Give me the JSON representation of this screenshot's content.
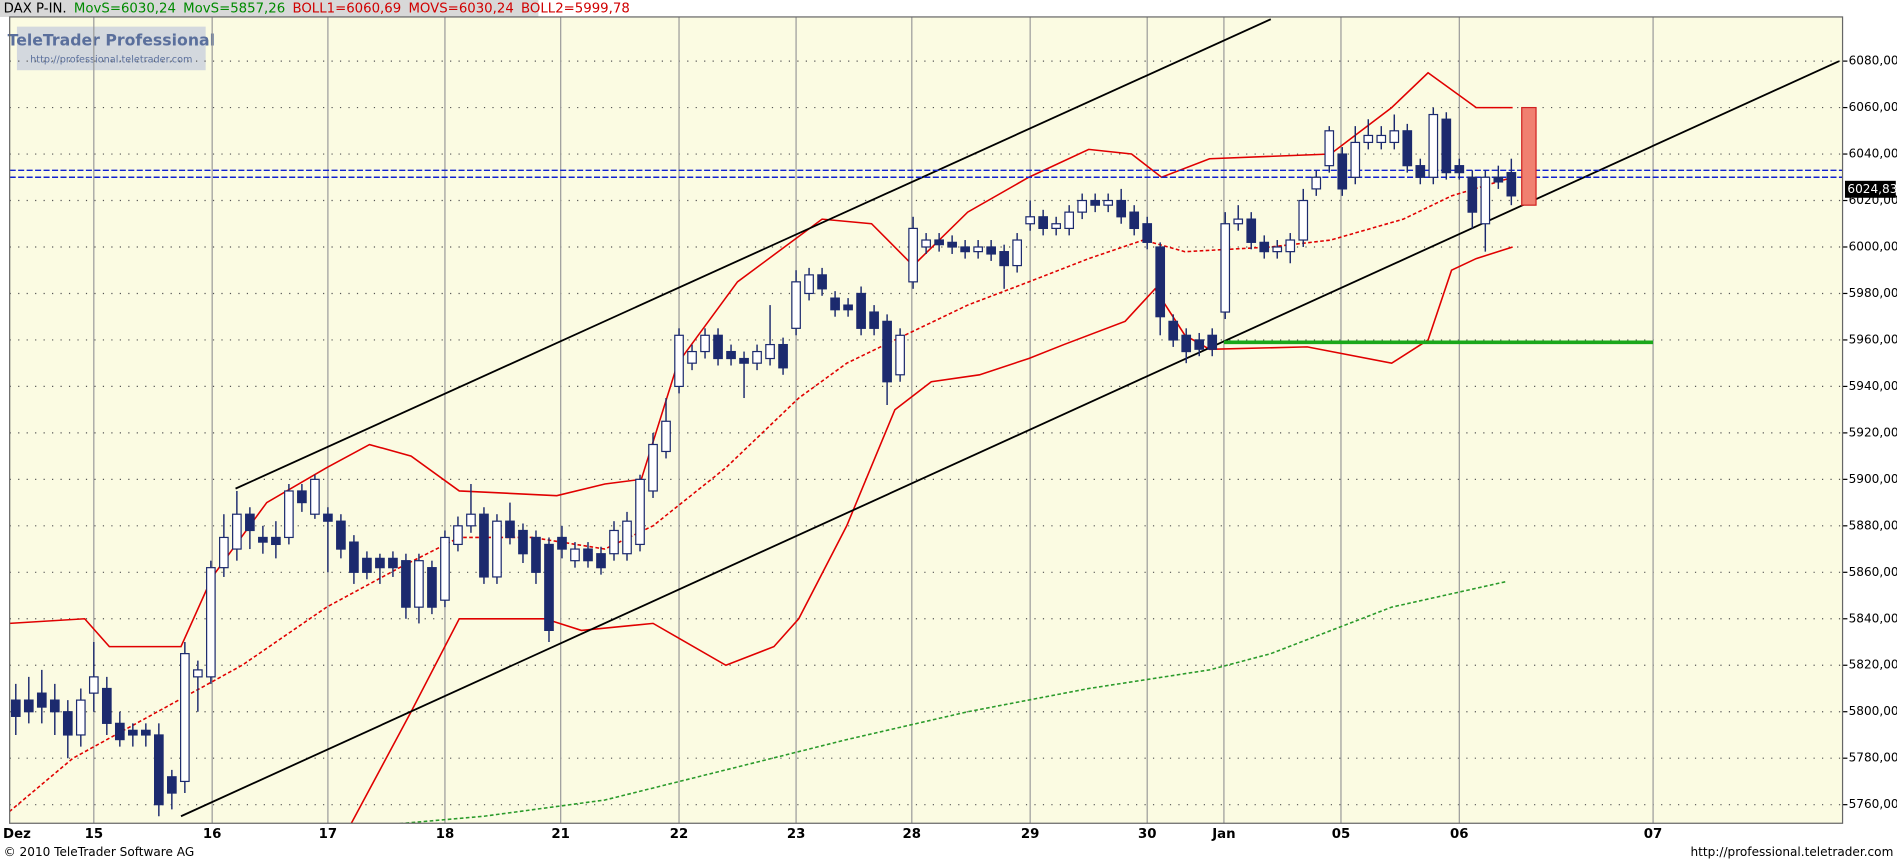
{
  "chart_data": {
    "type": "candlestick",
    "title_parts": [
      {
        "text": "DAX P-IN.",
        "color": "#000000"
      },
      {
        "text": "MovS=6030,24",
        "color": "#008a00"
      },
      {
        "text": "MovS=5857,26",
        "color": "#008a00"
      },
      {
        "text": "BOLL1=6060,69",
        "color": "#d00000"
      },
      {
        "text": "MOVS=6030,24",
        "color": "#d00000"
      },
      {
        "text": "BOLL2=5999,78",
        "color": "#d00000"
      }
    ],
    "logo": {
      "title": "TeleTrader Professional",
      "url": "http://professional.teletrader.com"
    },
    "footer_left": "© 2010 TeleTrader Software AG",
    "footer_right": "http://professional.teletrader.com",
    "up_color": "#ffffff",
    "down_color": "#1c2a6e",
    "background": "#fbfbe2",
    "open": [
      5805,
      5805,
      5808,
      5805,
      5800,
      5790,
      5808,
      5810,
      5795,
      5792,
      5792,
      5790,
      5772,
      5770,
      5815,
      5815,
      5862,
      5870,
      5885,
      5875,
      5875,
      5875,
      5895,
      5885,
      5885,
      5882,
      5873,
      5866,
      5866,
      5866,
      5865,
      5845,
      5862,
      5848,
      5872,
      5880,
      5885,
      5858,
      5882,
      5878,
      5875,
      5872,
      5875,
      5865,
      5870,
      5868,
      5868,
      5868,
      5872,
      5895,
      5912,
      5940,
      5950,
      5955,
      5962,
      5955,
      5952,
      5950,
      5952,
      5958,
      5965,
      5980,
      5988,
      5978,
      5975,
      5980,
      5972,
      5968,
      5945,
      5985,
      6000,
      6003,
      6002,
      6000,
      5998,
      6000,
      5998,
      5992,
      6010,
      6013,
      6008,
      6008,
      6015,
      6020,
      6018,
      6020,
      6015,
      6010,
      6000,
      5968,
      5962,
      5960,
      5962,
      5972,
      6010,
      6012,
      6002,
      5998,
      5998,
      6003,
      6025,
      6035,
      6040,
      6030,
      6045,
      6045,
      6045,
      6050,
      6035,
      6030,
      6055,
      6035,
      6030,
      6010,
      6030,
      6032
    ],
    "high": [
      5812,
      5815,
      5818,
      5812,
      5805,
      5810,
      5830,
      5815,
      5800,
      5795,
      5795,
      5795,
      5775,
      5830,
      5822,
      5865,
      5885,
      5895,
      5888,
      5880,
      5882,
      5898,
      5898,
      5902,
      5888,
      5885,
      5876,
      5869,
      5868,
      5869,
      5868,
      5868,
      5865,
      5878,
      5884,
      5898,
      5888,
      5885,
      5890,
      5881,
      5878,
      5875,
      5880,
      5873,
      5873,
      5871,
      5882,
      5886,
      5902,
      5920,
      5935,
      5965,
      5958,
      5965,
      5965,
      5958,
      5955,
      5958,
      5975,
      5961,
      5990,
      5991,
      5991,
      5981,
      5978,
      5983,
      5975,
      5971,
      5965,
      6013,
      6006,
      6006,
      6005,
      6003,
      6003,
      6003,
      6001,
      6006,
      6020,
      6016,
      6013,
      6018,
      6023,
      6023,
      6023,
      6025,
      6018,
      6013,
      6002,
      5971,
      5965,
      5963,
      5965,
      6015,
      6018,
      6015,
      6005,
      6003,
      6006,
      6025,
      6033,
      6052,
      6043,
      6052,
      6055,
      6052,
      6057,
      6053,
      6038,
      6060,
      6058,
      6038,
      6033,
      6033,
      6035,
      6038
    ],
    "low": [
      5790,
      5795,
      5795,
      5790,
      5780,
      5785,
      5800,
      5790,
      5785,
      5785,
      5785,
      5755,
      5758,
      5765,
      5800,
      5812,
      5858,
      5865,
      5870,
      5868,
      5866,
      5872,
      5886,
      5883,
      5860,
      5866,
      5855,
      5857,
      5855,
      5858,
      5840,
      5838,
      5842,
      5845,
      5869,
      5877,
      5855,
      5855,
      5872,
      5864,
      5855,
      5830,
      5866,
      5862,
      5862,
      5859,
      5865,
      5865,
      5869,
      5892,
      5909,
      5937,
      5947,
      5952,
      5949,
      5949,
      5935,
      5947,
      5949,
      5945,
      5962,
      5977,
      5979,
      5970,
      5970,
      5962,
      5962,
      5932,
      5942,
      5982,
      5997,
      5998,
      5997,
      5995,
      5995,
      5994,
      5982,
      5989,
      6007,
      6005,
      6005,
      6005,
      6012,
      6015,
      6015,
      6010,
      6005,
      5999,
      5962,
      5957,
      5950,
      5953,
      5953,
      5969,
      6007,
      5999,
      5995,
      5995,
      5993,
      6000,
      6022,
      6032,
      6022,
      6027,
      6042,
      6042,
      6042,
      6032,
      6027,
      6027,
      6029,
      6029,
      6008,
      5998,
      6025,
      6018
    ],
    "close": [
      5798,
      5800,
      5802,
      5800,
      5790,
      5805,
      5815,
      5795,
      5788,
      5790,
      5790,
      5760,
      5765,
      5825,
      5818,
      5862,
      5875,
      5885,
      5878,
      5873,
      5872,
      5895,
      5890,
      5900,
      5882,
      5870,
      5860,
      5860,
      5862,
      5862,
      5845,
      5865,
      5845,
      5875,
      5880,
      5885,
      5858,
      5882,
      5875,
      5868,
      5860,
      5835,
      5870,
      5870,
      5865,
      5862,
      5878,
      5882,
      5900,
      5915,
      5925,
      5962,
      5955,
      5962,
      5952,
      5952,
      5950,
      5955,
      5958,
      5948,
      5985,
      5988,
      5982,
      5973,
      5973,
      5965,
      5965,
      5942,
      5962,
      6008,
      6003,
      6001,
      6000,
      5998,
      6000,
      5997,
      5992,
      6003,
      6013,
      6008,
      6010,
      6015,
      6020,
      6018,
      6020,
      6013,
      6008,
      6002,
      5970,
      5960,
      5955,
      5956,
      5956,
      6010,
      6012,
      6002,
      5998,
      6000,
      6003,
      6020,
      6030,
      6050,
      6025,
      6045,
      6048,
      6048,
      6050,
      6035,
      6030,
      6057,
      6032,
      6032,
      6015,
      6030,
      6028,
      6022
    ],
    "xlim": [
      -0.47,
      140.47
    ],
    "ylim": [
      5752,
      6099
    ],
    "xticks": [
      {
        "value": 0,
        "label": "Dez"
      },
      {
        "value": 6.0,
        "label": "15"
      },
      {
        "value": 15.1,
        "label": "16"
      },
      {
        "value": 24.0,
        "label": "17"
      },
      {
        "value": 33.0,
        "label": "18"
      },
      {
        "value": 41.9,
        "label": "21"
      },
      {
        "value": 51.0,
        "label": "22"
      },
      {
        "value": 60.0,
        "label": "23"
      },
      {
        "value": 68.9,
        "label": "28"
      },
      {
        "value": 78.0,
        "label": "29"
      },
      {
        "value": 87.0,
        "label": "30"
      },
      {
        "value": 92.9,
        "label": "Jan"
      },
      {
        "value": 101.9,
        "label": "05"
      },
      {
        "value": 111.0,
        "label": "06"
      },
      {
        "value": 125.9,
        "label": "07"
      }
    ],
    "yticks": [
      {
        "value": 5760,
        "label": "5760,00"
      },
      {
        "value": 5780,
        "label": "5780,00"
      },
      {
        "value": 5800,
        "label": "5800,00"
      },
      {
        "value": 5820,
        "label": "5820,00"
      },
      {
        "value": 5840,
        "label": "5840,00"
      },
      {
        "value": 5860,
        "label": "5860,00"
      },
      {
        "value": 5880,
        "label": "5880,00"
      },
      {
        "value": 5900,
        "label": "5900,00"
      },
      {
        "value": 5920,
        "label": "5920,00"
      },
      {
        "value": 5940,
        "label": "5940,00"
      },
      {
        "value": 5960,
        "label": "5960,00"
      },
      {
        "value": 5980,
        "label": "5980,00"
      },
      {
        "value": 6000,
        "label": "6000,00"
      },
      {
        "value": 6020,
        "label": "6020,00"
      },
      {
        "value": 6040,
        "label": "6040,00"
      },
      {
        "value": 6060,
        "label": "6060,00"
      },
      {
        "value": 6080,
        "label": "6080,00"
      }
    ],
    "grid": true,
    "overlays": [
      {
        "color": "#e00000",
        "dash": false,
        "x": [
          -0.5,
          5.3,
          7.2,
          12.7,
          15.1,
          19.3,
          23.9,
          27.2,
          30.4,
          34.1,
          41.6,
          45.3,
          48.1,
          50.9,
          55.5,
          62,
          65.8,
          69,
          73.2,
          77.9,
          82.5,
          85.8,
          88.1,
          91.8,
          101.1,
          105.8,
          108.6,
          112.3,
          115.1
        ],
        "values": [
          5838,
          5840,
          5828,
          5828,
          5858,
          5890,
          5905,
          5915,
          5910,
          5895,
          5893,
          5898,
          5900,
          5950,
          5985,
          6012,
          6010,
          5992,
          6015,
          6030,
          6042,
          6040,
          6030,
          6038,
          6040,
          6060,
          6075,
          6060,
          6060
        ]
      },
      {
        "color": "#e00000",
        "dash": false,
        "x": [
          25.8,
          30.4,
          34.1,
          40.7,
          43.5,
          49,
          54.6,
          58.3,
          60.2,
          63.9,
          67.6,
          70.4,
          74.1,
          77.9,
          80.6,
          85.3,
          87.6,
          89.9,
          91.8,
          99.3,
          105.8,
          108.6,
          110.4,
          112.3,
          115.1
        ],
        "values": [
          5752,
          5800,
          5840,
          5840,
          5835,
          5838,
          5820,
          5828,
          5840,
          5880,
          5930,
          5942,
          5945,
          5952,
          5958,
          5968,
          5982,
          5962,
          5956,
          5957,
          5950,
          5960,
          5990,
          5995,
          6000
        ]
      },
      {
        "color": "#e00000",
        "dash": true,
        "x": [
          -0.5,
          4.4,
          10.9,
          17.4,
          23.9,
          29.5,
          34.1,
          39.7,
          45.3,
          49,
          54.6,
          60.2,
          63.9,
          67.6,
          73.2,
          77.9,
          82.5,
          86.7,
          89.9,
          96.5,
          101.1,
          106.7,
          110.4,
          115.1
        ],
        "values": [
          5757,
          5780,
          5800,
          5820,
          5845,
          5862,
          5875,
          5875,
          5870,
          5880,
          5905,
          5935,
          5950,
          5960,
          5975,
          5985,
          5995,
          6003,
          5998,
          6000,
          6003,
          6012,
          6022,
          6030
        ]
      },
      {
        "color": "#2a9a2a",
        "dash": true,
        "x": [
          25.8,
          36,
          45.3,
          54.6,
          63.9,
          73.2,
          82.5,
          91.8,
          96.5,
          105.8,
          114.6
        ],
        "values": [
          5750,
          5755,
          5762,
          5775,
          5788,
          5800,
          5810,
          5818,
          5825,
          5845,
          5856
        ]
      },
      {
        "color": "#000000",
        "dash": false,
        "x": [
          16.9,
          96.5
        ],
        "values": [
          5896,
          6098
        ]
      },
      {
        "color": "#000000",
        "dash": false,
        "x": [
          12.7,
          140.2
        ],
        "values": [
          5755,
          6080
        ]
      }
    ],
    "hlines": [
      {
        "value": 6033,
        "color": "#1020d0"
      },
      {
        "value": 6030,
        "color": "#1020d0"
      }
    ],
    "support": {
      "x": [
        92.9,
        125.9
      ],
      "value": 5959,
      "color": "#1aa81a"
    },
    "target_box": {
      "x": [
        115.8,
        116.9
      ],
      "values": [
        6018,
        6060
      ],
      "color": "#f08070"
    },
    "last_price": {
      "value": 6024.83,
      "label": "6024,83"
    }
  }
}
